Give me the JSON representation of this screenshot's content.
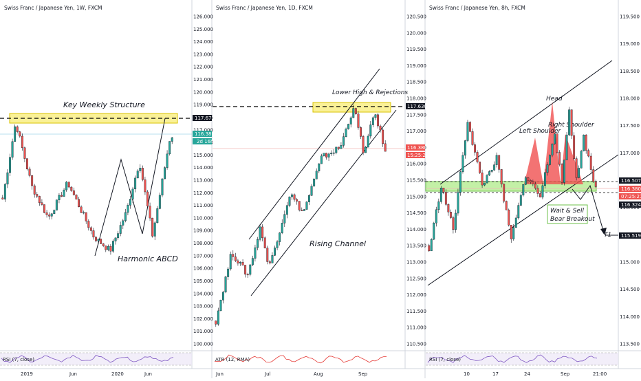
{
  "panels": [
    {
      "title": "Swiss Franc / Japanese Yen, 1W, FXCM",
      "yticks": [
        "126.000",
        "125.000",
        "124.000",
        "123.000",
        "122.000",
        "121.000",
        "120.000",
        "119.000",
        "118.000",
        "117.000",
        "116.000",
        "115.000",
        "114.000",
        "113.000",
        "112.000",
        "111.000",
        "110.000",
        "109.000",
        "108.000",
        "107.000",
        "106.000",
        "105.000",
        "104.000",
        "103.000",
        "102.000",
        "101.000",
        "100.000"
      ],
      "xticks": [
        "2019",
        "Jun",
        "2020",
        "Jun"
      ],
      "price_tags": [
        "117.677",
        "116.380",
        "2d 16h"
      ],
      "annotations": [
        "Key Weekly Structure",
        "Harmonic ABCD"
      ],
      "indicator": "RSI (7, close)"
    },
    {
      "title": "Swiss Franc / Japanese Yen, 1D, FXCM",
      "yticks": [
        "120.500",
        "120.000",
        "119.500",
        "119.000",
        "118.500",
        "118.000",
        "117.500",
        "117.000",
        "116.500",
        "116.000",
        "115.500",
        "115.000",
        "114.500",
        "114.000",
        "113.500",
        "113.000",
        "112.500",
        "112.000",
        "111.500",
        "111.000",
        "110.500"
      ],
      "xticks": [
        "Jun",
        "Jul",
        "Aug",
        "Sep"
      ],
      "price_tags": [
        "117.630",
        "116.380",
        "15:25:21"
      ],
      "annotations": [
        "Lower High & Rejections",
        "Rising Channel"
      ],
      "indicator": "ATR (12, RMA)"
    },
    {
      "title": "Swiss Franc / Japanese Yen, 8h, FXCM",
      "yticks": [
        "119.500",
        "119.000",
        "118.500",
        "118.000",
        "117.500",
        "117.000",
        "116.500",
        "116.000",
        "115.500",
        "115.000",
        "114.500",
        "114.000",
        "113.500"
      ],
      "xticks": [
        "10",
        "17",
        "24",
        "Sep",
        "21:00"
      ],
      "price_tags": [
        "116.507",
        "116.380",
        "07:25:21",
        "116.324",
        "115.519"
      ],
      "annotations": [
        "Head",
        "Left Shoulder",
        "Right Shoulder",
        "Wait & Sell",
        "Bear Breakout",
        "T1"
      ],
      "indicator": "RSI (7, close)"
    }
  ],
  "colors": {
    "bull": "#26a69a",
    "bear": "#ef5350",
    "zone_yellow": "#f5e642",
    "zone_green": "#9be66b",
    "pattern_red": "#f05050"
  },
  "chart_data": [
    {
      "type": "candlestick",
      "title": "Swiss Franc / Japanese Yen, 1W, FXCM",
      "ylim": [
        100,
        126
      ],
      "key_level": 117.677,
      "last": 116.38,
      "swings": [
        [
          0,
          111.5
        ],
        [
          4,
          117.6
        ],
        [
          9,
          112.5
        ],
        [
          14,
          110.0
        ],
        [
          20,
          112.8
        ],
        [
          28,
          108.5
        ],
        [
          33,
          107.4
        ],
        [
          38,
          110.5
        ],
        [
          42,
          114.5
        ],
        [
          46,
          108.6
        ],
        [
          52,
          117.3
        ]
      ]
    },
    {
      "type": "candlestick",
      "title": "Swiss Franc / Japanese Yen, 1D, FXCM",
      "ylim": [
        110.5,
        120.5
      ],
      "key_level": 117.63,
      "last": 116.38,
      "swings": [
        [
          0,
          111.2
        ],
        [
          6,
          113.3
        ],
        [
          12,
          112.6
        ],
        [
          17,
          114.1
        ],
        [
          20,
          112.8
        ],
        [
          28,
          115.1
        ],
        [
          33,
          114.5
        ],
        [
          40,
          116.2
        ],
        [
          47,
          116.5
        ],
        [
          52,
          117.75
        ],
        [
          56,
          116.3
        ],
        [
          60,
          117.6
        ],
        [
          64,
          116.38
        ]
      ]
    },
    {
      "type": "candlestick",
      "title": "Swiss Franc / Japanese Yen, 8h, FXCM",
      "ylim": [
        113.5,
        119.5
      ],
      "key_level": 116.507,
      "last": 116.38,
      "swings": [
        [
          0,
          115.2
        ],
        [
          5,
          116.4
        ],
        [
          10,
          115.6
        ],
        [
          16,
          117.6
        ],
        [
          22,
          116.4
        ],
        [
          28,
          116.9
        ],
        [
          34,
          115.4
        ],
        [
          40,
          116.6
        ],
        [
          46,
          116.2
        ],
        [
          52,
          117.4
        ],
        [
          55,
          116.4
        ],
        [
          58,
          117.8
        ],
        [
          61,
          116.5
        ],
        [
          64,
          117.3
        ],
        [
          69,
          116.3
        ]
      ]
    }
  ]
}
